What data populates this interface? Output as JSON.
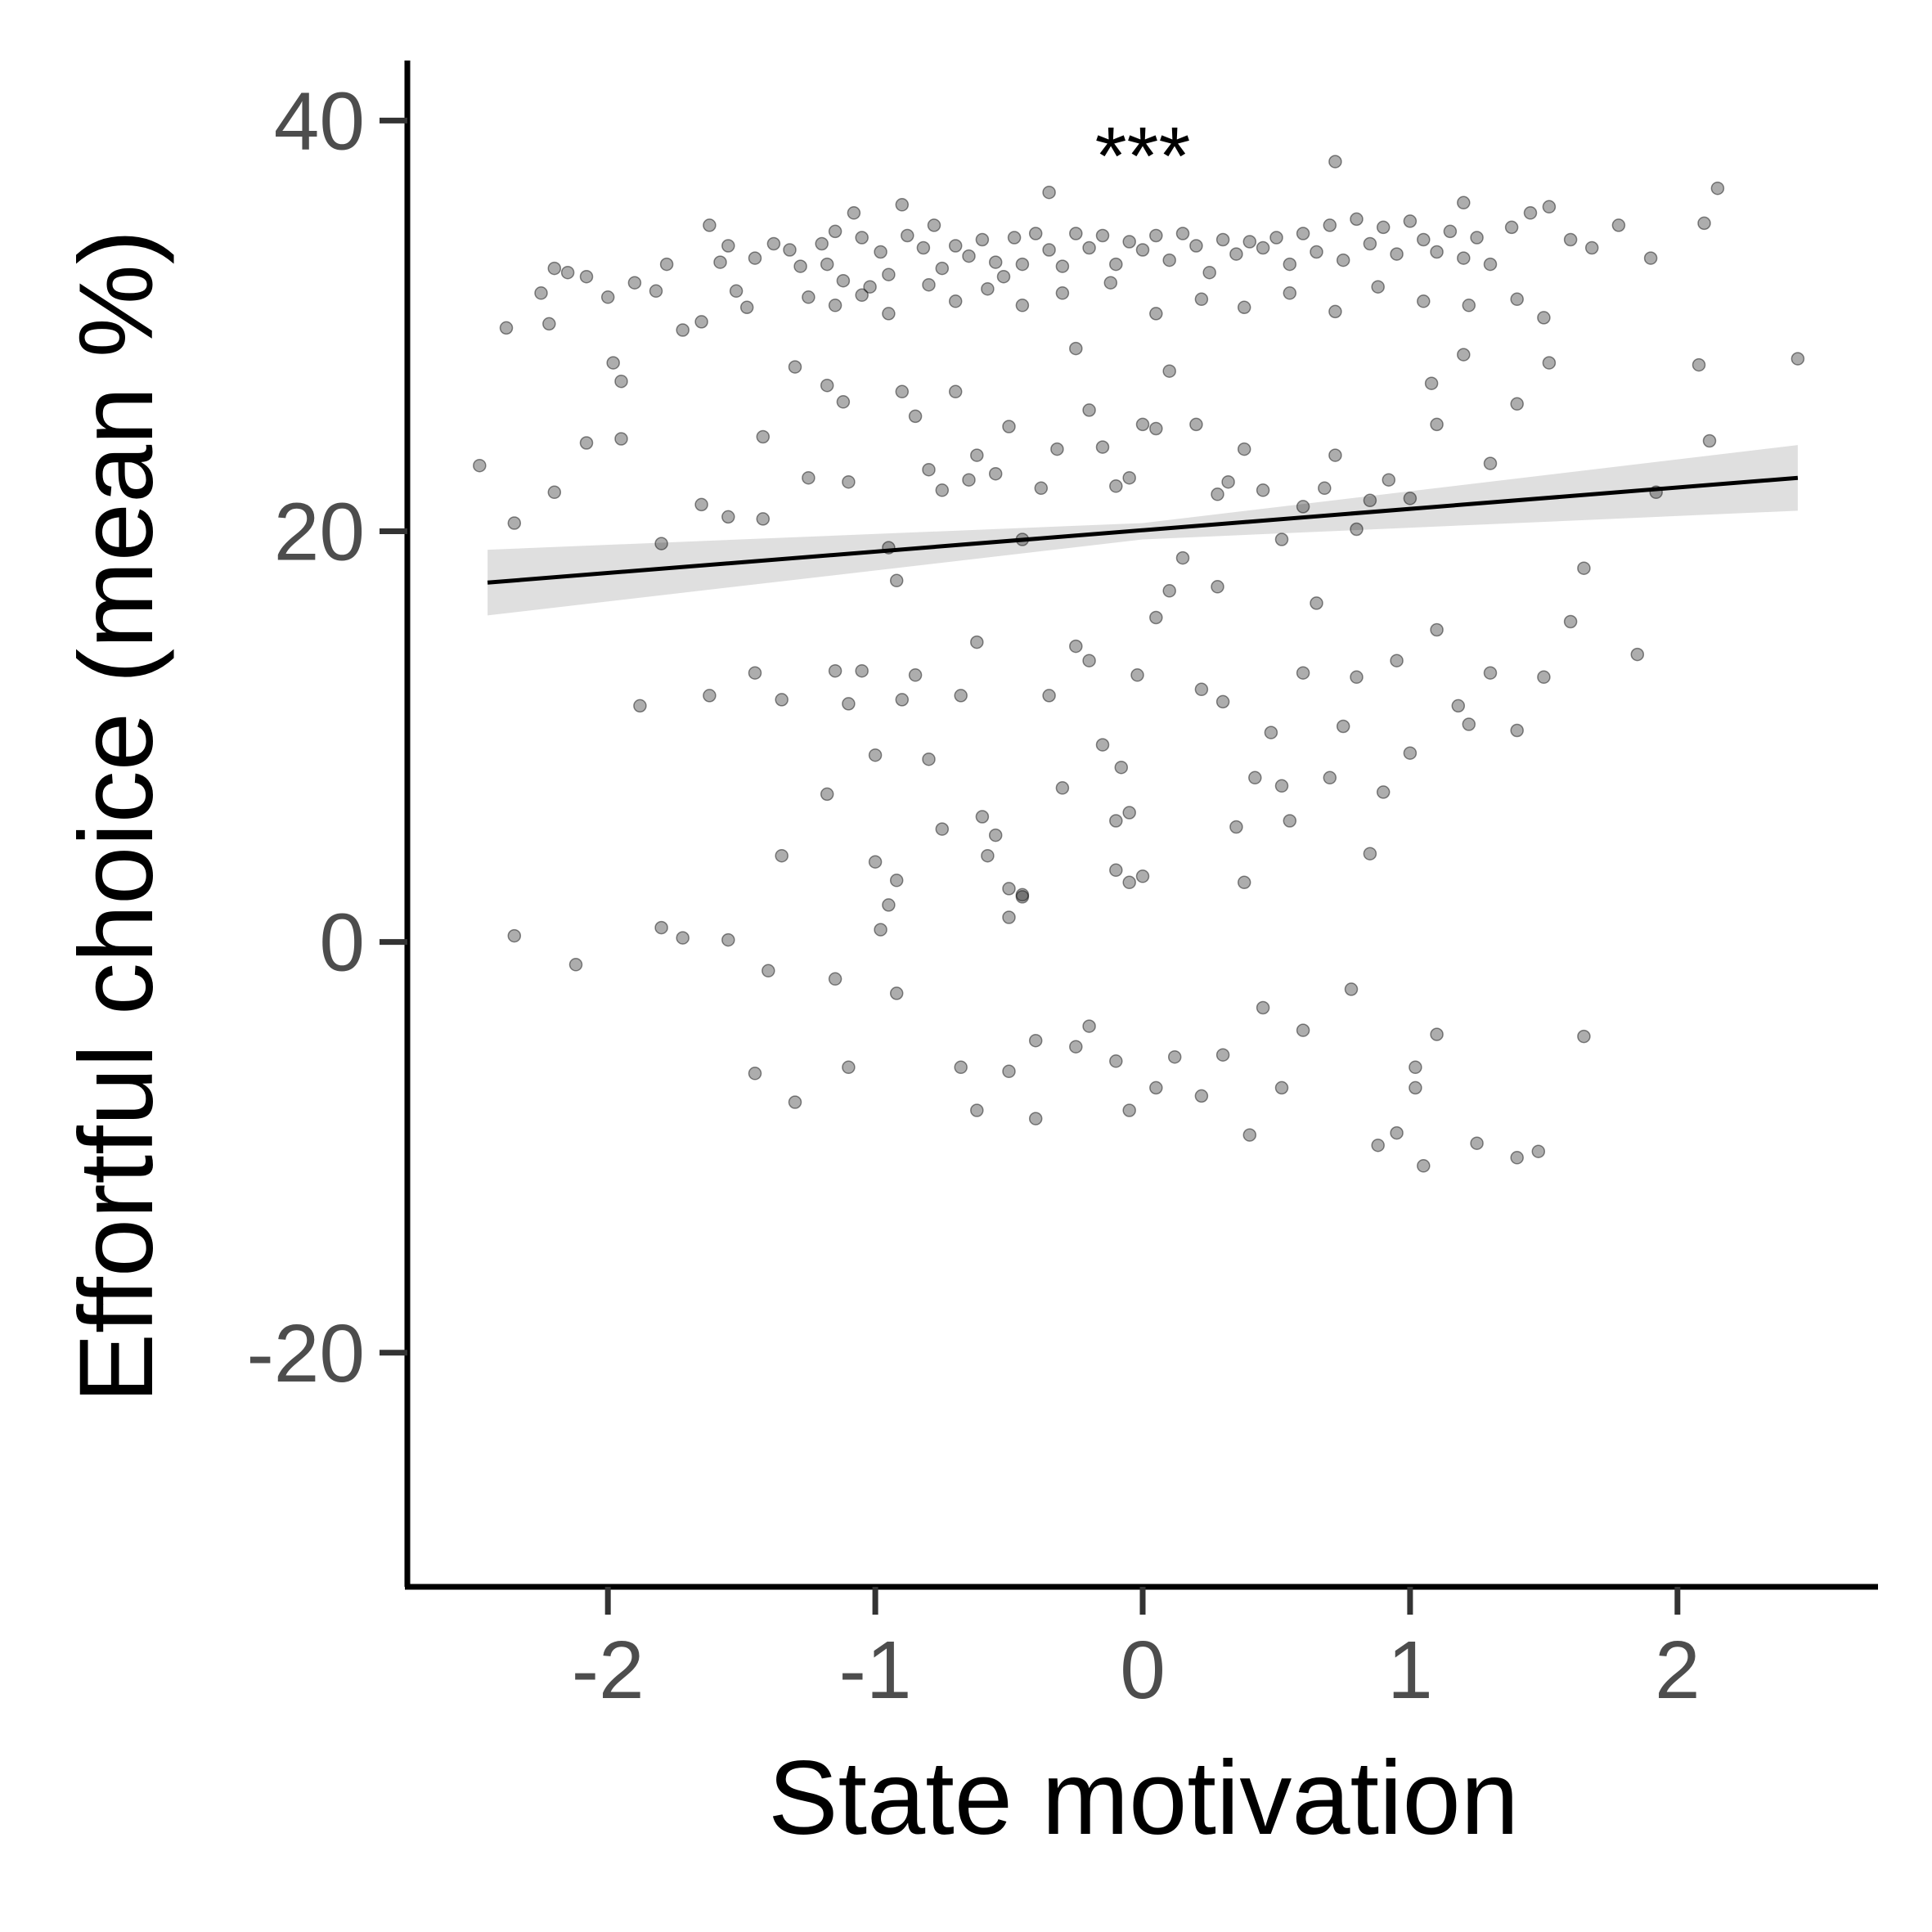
{
  "chart_data": {
    "type": "scatter",
    "title": "",
    "xlabel": "State motivation",
    "ylabel": "Effortful choice (mean %)",
    "xlim": [
      -2.75,
      2.75
    ],
    "ylim": [
      -31.4,
      43.4
    ],
    "xticks": [
      -2,
      -1,
      0,
      1,
      2
    ],
    "yticks": [
      -20,
      0,
      20,
      40
    ],
    "xtick_labels": [
      "-2",
      "-1",
      "0",
      "1",
      "2"
    ],
    "ytick_labels": [
      "-20",
      "0",
      "20",
      "40"
    ],
    "grid": false,
    "annotations": [
      {
        "text": "***",
        "x": 0.0,
        "y": 38.5
      }
    ],
    "point_color": "#000000",
    "band_color": "#d9d9d9",
    "fit_line": {
      "x": [
        -2.45,
        2.45
      ],
      "y": [
        17.5,
        22.6
      ]
    },
    "confidence_band": {
      "x": [
        -2.45,
        0.0,
        2.45
      ],
      "lower": [
        15.9,
        19.6,
        21.0
      ],
      "upper": [
        19.1,
        20.4,
        24.2
      ]
    },
    "points": [
      [
        -2.38,
        29.9
      ],
      [
        -2.25,
        31.6
      ],
      [
        -2.22,
        30.1
      ],
      [
        -2.2,
        32.8
      ],
      [
        -2.15,
        32.6
      ],
      [
        -2.08,
        32.4
      ],
      [
        -2.0,
        31.4
      ],
      [
        -1.98,
        28.2
      ],
      [
        -1.95,
        27.3
      ],
      [
        -1.9,
        32.1
      ],
      [
        -1.82,
        31.7
      ],
      [
        -1.78,
        33.0
      ],
      [
        -1.72,
        29.8
      ],
      [
        -1.65,
        30.2
      ],
      [
        -1.62,
        34.9
      ],
      [
        -1.58,
        33.1
      ],
      [
        -1.55,
        33.9
      ],
      [
        -1.52,
        31.7
      ],
      [
        -1.48,
        30.9
      ],
      [
        -1.45,
        33.3
      ],
      [
        -1.38,
        34.0
      ],
      [
        -1.32,
        33.7
      ],
      [
        -1.28,
        32.9
      ],
      [
        -1.25,
        31.4
      ],
      [
        -1.2,
        34.0
      ],
      [
        -1.18,
        33.0
      ],
      [
        -1.15,
        34.6
      ],
      [
        -1.12,
        32.2
      ],
      [
        -1.08,
        35.5
      ],
      [
        -1.05,
        34.3
      ],
      [
        -1.02,
        31.9
      ],
      [
        -0.98,
        33.6
      ],
      [
        -0.95,
        32.5
      ],
      [
        -0.9,
        35.9
      ],
      [
        -0.88,
        34.4
      ],
      [
        -0.82,
        33.8
      ],
      [
        -0.78,
        34.9
      ],
      [
        -0.75,
        32.8
      ],
      [
        -0.7,
        33.9
      ],
      [
        -0.65,
        33.4
      ],
      [
        -0.6,
        34.2
      ],
      [
        -0.55,
        33.1
      ],
      [
        -0.52,
        32.4
      ],
      [
        -0.48,
        34.3
      ],
      [
        -0.45,
        33.0
      ],
      [
        -0.4,
        34.5
      ],
      [
        -0.35,
        33.7
      ],
      [
        -0.3,
        32.9
      ],
      [
        -0.25,
        34.5
      ],
      [
        -0.2,
        33.8
      ],
      [
        -0.15,
        34.4
      ],
      [
        -0.1,
        33.0
      ],
      [
        -0.05,
        34.1
      ],
      [
        0.0,
        33.7
      ],
      [
        0.05,
        34.4
      ],
      [
        0.1,
        33.2
      ],
      [
        0.15,
        34.5
      ],
      [
        0.2,
        33.9
      ],
      [
        0.25,
        32.6
      ],
      [
        0.3,
        34.2
      ],
      [
        0.35,
        33.5
      ],
      [
        0.4,
        34.1
      ],
      [
        0.45,
        33.8
      ],
      [
        0.5,
        34.3
      ],
      [
        0.55,
        33.0
      ],
      [
        0.6,
        34.5
      ],
      [
        0.65,
        33.6
      ],
      [
        0.7,
        34.9
      ],
      [
        0.75,
        33.2
      ],
      [
        0.8,
        35.2
      ],
      [
        0.85,
        34.0
      ],
      [
        0.9,
        34.8
      ],
      [
        0.95,
        33.5
      ],
      [
        1.0,
        35.1
      ],
      [
        1.05,
        34.2
      ],
      [
        1.1,
        33.6
      ],
      [
        1.15,
        34.6
      ],
      [
        1.2,
        33.3
      ],
      [
        1.25,
        34.3
      ],
      [
        1.3,
        33.0
      ],
      [
        1.38,
        34.8
      ],
      [
        1.45,
        35.5
      ],
      [
        1.52,
        35.8
      ],
      [
        1.6,
        34.2
      ],
      [
        1.68,
        33.8
      ],
      [
        1.78,
        34.9
      ],
      [
        1.9,
        33.3
      ],
      [
        2.1,
        35.0
      ],
      [
        2.15,
        36.7
      ],
      [
        -0.35,
        36.5
      ],
      [
        0.72,
        38.0
      ],
      [
        1.2,
        36.0
      ],
      [
        -1.15,
        31.0
      ],
      [
        -1.05,
        31.5
      ],
      [
        -0.95,
        30.6
      ],
      [
        -0.8,
        32.0
      ],
      [
        -0.7,
        31.2
      ],
      [
        -0.58,
        31.8
      ],
      [
        -0.45,
        31.0
      ],
      [
        -0.3,
        31.6
      ],
      [
        -0.12,
        32.1
      ],
      [
        0.05,
        30.6
      ],
      [
        0.22,
        31.3
      ],
      [
        0.38,
        30.9
      ],
      [
        0.55,
        31.6
      ],
      [
        0.72,
        30.7
      ],
      [
        0.88,
        31.9
      ],
      [
        1.05,
        31.2
      ],
      [
        1.22,
        31.0
      ],
      [
        1.4,
        31.3
      ],
      [
        1.5,
        30.4
      ],
      [
        -2.48,
        23.2
      ],
      [
        -2.35,
        20.4
      ],
      [
        -2.2,
        21.9
      ],
      [
        -2.08,
        24.3
      ],
      [
        -1.95,
        24.5
      ],
      [
        -1.8,
        19.4
      ],
      [
        -1.65,
        21.3
      ],
      [
        -1.55,
        20.7
      ],
      [
        -1.42,
        20.6
      ],
      [
        -1.42,
        24.6
      ],
      [
        -1.3,
        28.0
      ],
      [
        -1.25,
        22.6
      ],
      [
        -1.18,
        27.1
      ],
      [
        -1.12,
        26.3
      ],
      [
        -1.1,
        22.4
      ],
      [
        -0.95,
        19.2
      ],
      [
        -0.92,
        17.6
      ],
      [
        -0.9,
        26.8
      ],
      [
        -0.85,
        25.6
      ],
      [
        -0.8,
        23.0
      ],
      [
        -0.75,
        22.0
      ],
      [
        -0.7,
        26.8
      ],
      [
        -0.65,
        22.5
      ],
      [
        -0.62,
        23.7
      ],
      [
        -0.55,
        22.8
      ],
      [
        -0.5,
        25.1
      ],
      [
        -0.45,
        19.6
      ],
      [
        -0.38,
        22.1
      ],
      [
        -0.32,
        24.0
      ],
      [
        -0.25,
        28.9
      ],
      [
        -0.2,
        25.9
      ],
      [
        -0.15,
        24.1
      ],
      [
        -0.1,
        22.2
      ],
      [
        -0.05,
        22.6
      ],
      [
        0.0,
        25.2
      ],
      [
        0.05,
        25.0
      ],
      [
        0.1,
        27.8
      ],
      [
        0.2,
        25.2
      ],
      [
        0.28,
        21.8
      ],
      [
        0.32,
        22.4
      ],
      [
        0.38,
        24.0
      ],
      [
        0.45,
        22.0
      ],
      [
        0.52,
        19.6
      ],
      [
        0.6,
        21.2
      ],
      [
        0.68,
        22.1
      ],
      [
        0.72,
        23.7
      ],
      [
        0.8,
        20.1
      ],
      [
        0.85,
        21.5
      ],
      [
        0.92,
        22.5
      ],
      [
        1.0,
        21.6
      ],
      [
        1.08,
        27.2
      ],
      [
        1.1,
        25.2
      ],
      [
        1.2,
        28.6
      ],
      [
        1.3,
        23.3
      ],
      [
        1.4,
        26.2
      ],
      [
        1.52,
        28.2
      ],
      [
        1.65,
        18.2
      ],
      [
        1.92,
        21.9
      ],
      [
        2.08,
        28.1
      ],
      [
        2.12,
        24.4
      ],
      [
        2.45,
        28.4
      ],
      [
        -1.88,
        11.5
      ],
      [
        -1.62,
        12.0
      ],
      [
        -1.45,
        13.1
      ],
      [
        -1.35,
        11.8
      ],
      [
        -1.18,
        7.2
      ],
      [
        -1.15,
        13.2
      ],
      [
        -1.1,
        11.6
      ],
      [
        -1.05,
        13.2
      ],
      [
        -1.0,
        9.1
      ],
      [
        -0.9,
        11.8
      ],
      [
        -0.85,
        13.0
      ],
      [
        -0.8,
        8.9
      ],
      [
        -0.75,
        5.5
      ],
      [
        -0.68,
        12.0
      ],
      [
        -0.6,
        6.1
      ],
      [
        -0.58,
        4.2
      ],
      [
        -0.55,
        5.2
      ],
      [
        -0.5,
        2.6
      ],
      [
        -0.45,
        2.3
      ],
      [
        -0.35,
        12.0
      ],
      [
        -0.3,
        7.5
      ],
      [
        -0.25,
        14.4
      ],
      [
        -0.2,
        13.7
      ],
      [
        -0.15,
        9.6
      ],
      [
        -0.1,
        5.9
      ],
      [
        -0.08,
        8.5
      ],
      [
        -0.05,
        6.3
      ],
      [
        0.0,
        3.2
      ],
      [
        0.05,
        15.8
      ],
      [
        0.1,
        17.1
      ],
      [
        0.15,
        18.7
      ],
      [
        0.22,
        12.3
      ],
      [
        0.3,
        11.7
      ],
      [
        0.35,
        5.6
      ],
      [
        0.42,
        8.0
      ],
      [
        0.48,
        10.2
      ],
      [
        0.52,
        7.6
      ],
      [
        0.55,
        5.9
      ],
      [
        0.6,
        13.1
      ],
      [
        0.65,
        16.5
      ],
      [
        0.7,
        8.0
      ],
      [
        0.75,
        10.5
      ],
      [
        0.8,
        12.9
      ],
      [
        0.85,
        4.3
      ],
      [
        0.9,
        7.3
      ],
      [
        0.95,
        13.7
      ],
      [
        1.0,
        9.2
      ],
      [
        1.1,
        15.2
      ],
      [
        1.18,
        11.5
      ],
      [
        1.22,
        10.6
      ],
      [
        1.3,
        13.1
      ],
      [
        1.4,
        10.3
      ],
      [
        1.5,
        12.9
      ],
      [
        1.6,
        15.6
      ],
      [
        1.85,
        14.0
      ],
      [
        -0.02,
        13.0
      ],
      [
        -0.62,
        14.6
      ],
      [
        0.28,
        17.3
      ],
      [
        -2.35,
        0.3
      ],
      [
        -2.12,
        -1.1
      ],
      [
        -1.8,
        0.7
      ],
      [
        -1.72,
        0.2
      ],
      [
        -1.55,
        0.1
      ],
      [
        -1.4,
        -1.4
      ],
      [
        -1.15,
        -1.8
      ],
      [
        -0.98,
        0.6
      ],
      [
        -0.95,
        1.8
      ],
      [
        -0.5,
        1.2
      ],
      [
        0.38,
        2.9
      ],
      [
        -1.35,
        4.2
      ],
      [
        -1.0,
        3.9
      ],
      [
        -0.92,
        3.0
      ],
      [
        -0.45,
        2.2
      ],
      [
        -0.1,
        3.5
      ],
      [
        -0.05,
        2.9
      ],
      [
        -1.45,
        -6.4
      ],
      [
        -1.3,
        -7.8
      ],
      [
        -1.1,
        -6.1
      ],
      [
        -0.92,
        -2.5
      ],
      [
        -0.68,
        -6.1
      ],
      [
        -0.62,
        -8.2
      ],
      [
        -0.5,
        -6.3
      ],
      [
        -0.4,
        -4.8
      ],
      [
        -0.25,
        -5.1
      ],
      [
        -0.2,
        -4.1
      ],
      [
        -0.1,
        -5.8
      ],
      [
        -0.05,
        -8.2
      ],
      [
        0.05,
        -7.1
      ],
      [
        0.12,
        -5.6
      ],
      [
        0.22,
        -7.5
      ],
      [
        0.3,
        -5.5
      ],
      [
        0.4,
        -9.4
      ],
      [
        0.45,
        -3.2
      ],
      [
        0.52,
        -7.1
      ],
      [
        0.6,
        -4.3
      ],
      [
        0.78,
        -2.3
      ],
      [
        0.88,
        -9.9
      ],
      [
        0.95,
        -9.3
      ],
      [
        1.02,
        -6.1
      ],
      [
        1.05,
        -10.9
      ],
      [
        1.1,
        -4.5
      ],
      [
        1.25,
        -9.8
      ],
      [
        1.4,
        -10.5
      ],
      [
        1.48,
        -10.2
      ],
      [
        1.65,
        -4.6
      ],
      [
        -0.4,
        -8.6
      ],
      [
        1.02,
        -7.1
      ]
    ]
  }
}
